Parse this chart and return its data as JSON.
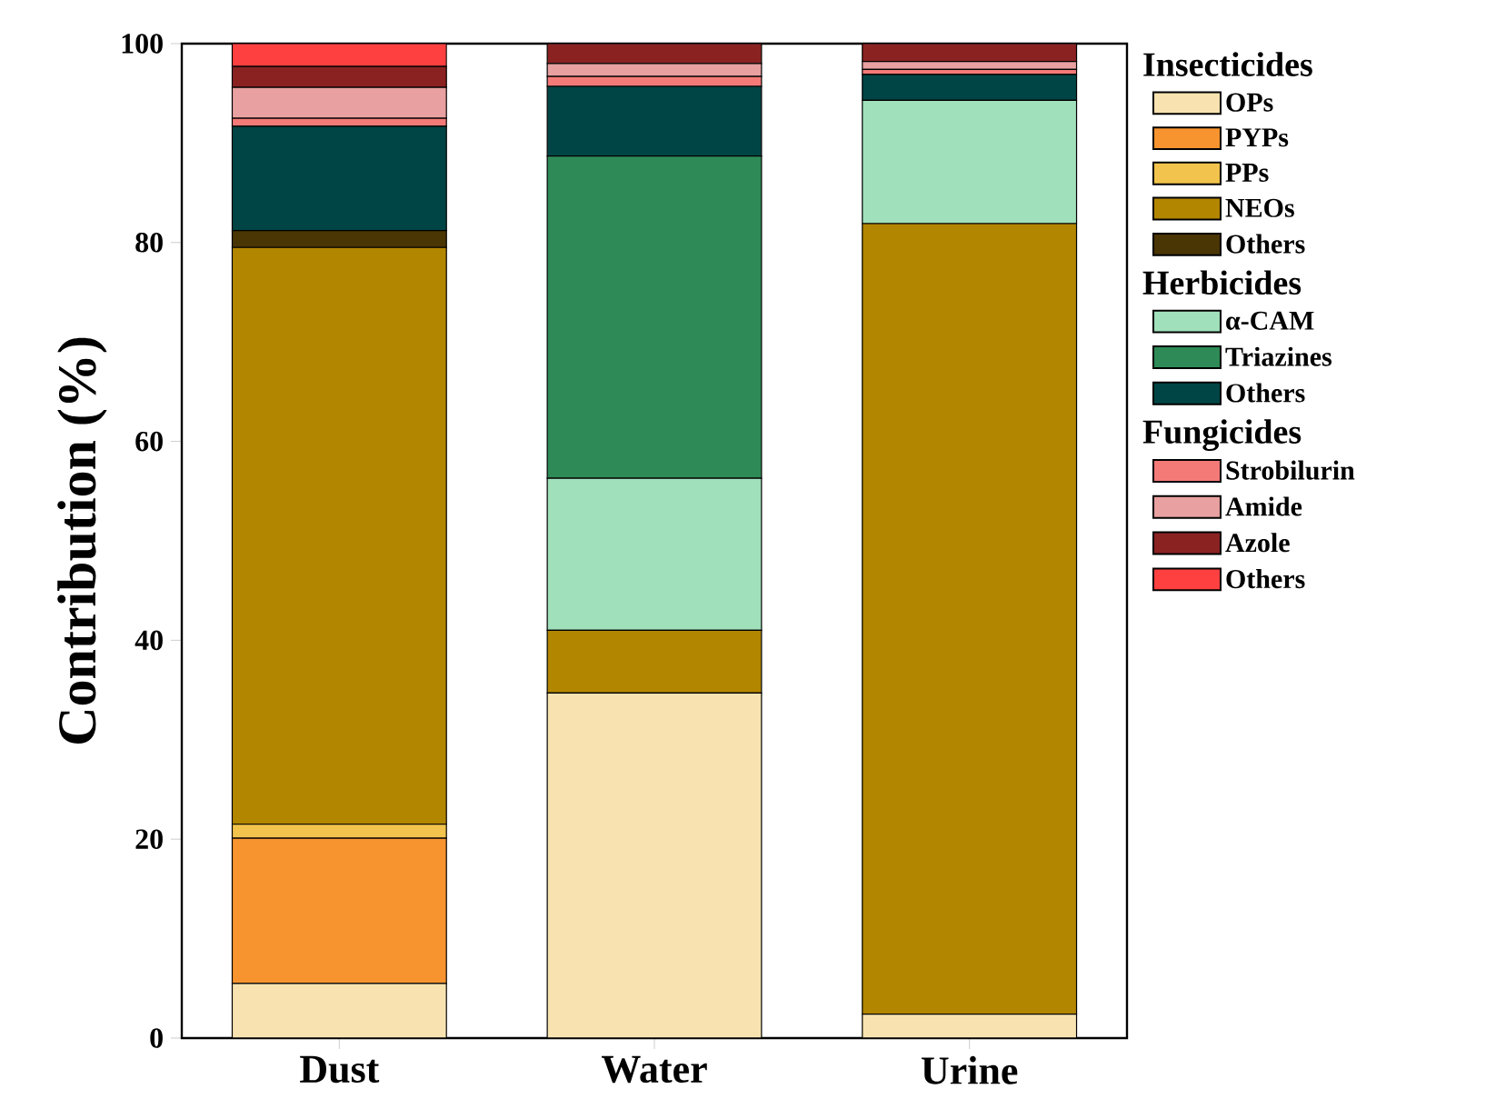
{
  "chart_data": {
    "type": "bar",
    "stacked": true,
    "ylabel": "Contribution (%)",
    "categories": [
      "Dust",
      "Water",
      "Urine"
    ],
    "ylim": [
      0,
      100
    ],
    "yticks": [
      0,
      20,
      40,
      60,
      80,
      100
    ],
    "legend": "right",
    "annotations": [
      "Insecticides",
      "Herbicides",
      "Fungicides"
    ],
    "series": [
      {
        "name": "OPs",
        "color": "#f8e3b0",
        "values": [
          5.5,
          34.7,
          2.4
        ]
      },
      {
        "name": "PYPs",
        "color": "#f7942f",
        "values": [
          14.6,
          0,
          0
        ]
      },
      {
        "name": "PPs",
        "color": "#f2c44d",
        "values": [
          1.4,
          0,
          0
        ]
      },
      {
        "name": "NEOs",
        "color": "#b38600",
        "values": [
          58.0,
          6.3,
          79.5
        ]
      },
      {
        "name": "Others",
        "color": "#4a3505",
        "values": [
          1.7,
          0,
          0
        ]
      },
      {
        "name": "α-CAM",
        "color": "#a0e0bb",
        "values": [
          0,
          15.3,
          12.4
        ]
      },
      {
        "name": "Triazines",
        "color": "#2e8b57",
        "values": [
          0,
          32.4,
          0
        ]
      },
      {
        "name": "Others",
        "color": "#004545",
        "values": [
          10.5,
          7.0,
          2.6
        ]
      },
      {
        "name": "Strobilurin",
        "color": "#f47a78",
        "values": [
          0.8,
          1.0,
          0.5
        ]
      },
      {
        "name": "Amide",
        "color": "#e8a0a0",
        "values": [
          3.1,
          1.3,
          0.8
        ]
      },
      {
        "name": "Azole",
        "color": "#8b2222",
        "values": [
          2.1,
          2.0,
          1.8
        ]
      },
      {
        "name": "Others",
        "color": "#ff4040",
        "values": [
          2.3,
          0,
          0
        ]
      }
    ]
  }
}
